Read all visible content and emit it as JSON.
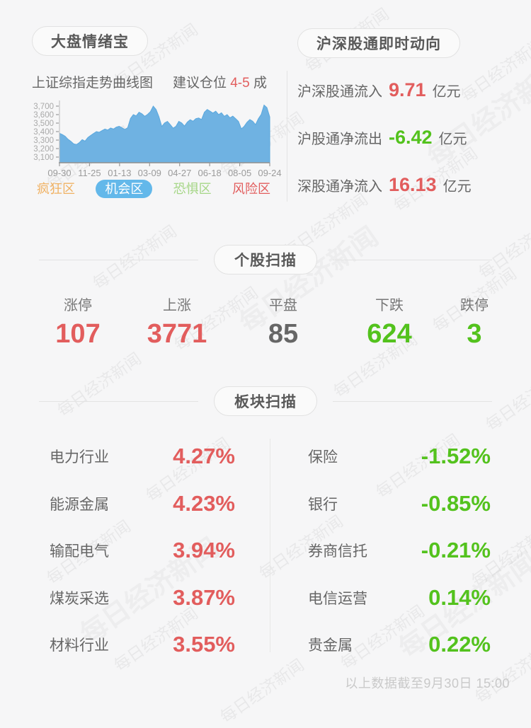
{
  "page": {
    "watermark_text": "每日经济新闻",
    "footer_note": "以上数据截至9月30日 15:00"
  },
  "sentiment": {
    "title": "大盘情绪宝",
    "chart_caption": "上证综指走势曲线图",
    "position_label": "建议仓位",
    "position_value": "4-5",
    "position_unit": "成",
    "legend": [
      {
        "label": "疯狂区",
        "color": "#f0b264",
        "active": false
      },
      {
        "label": "机会区",
        "color": "#63b8ea",
        "active": true
      },
      {
        "label": "恐惧区",
        "color": "#a6d687",
        "active": false
      },
      {
        "label": "风险区",
        "color": "#e25d5d",
        "active": false
      }
    ]
  },
  "chart_data": {
    "type": "area",
    "title": "上证综指走势曲线图",
    "x_ticks": [
      "09-30",
      "11-25",
      "01-13",
      "03-09",
      "04-27",
      "06-18",
      "08-05",
      "09-24"
    ],
    "y_ticks": [
      "3,700",
      "3,600",
      "3,500",
      "3,400",
      "3,300",
      "3,200",
      "3,100"
    ],
    "ylim": [
      3050,
      3750
    ],
    "grid": false,
    "area_color": "#6fb2e2",
    "line_color": "#5aa8de",
    "values": [
      3380,
      3365,
      3345,
      3310,
      3285,
      3255,
      3248,
      3270,
      3305,
      3288,
      3330,
      3355,
      3378,
      3400,
      3392,
      3412,
      3430,
      3418,
      3442,
      3430,
      3452,
      3462,
      3445,
      3425,
      3445,
      3555,
      3600,
      3585,
      3628,
      3610,
      3580,
      3602,
      3635,
      3700,
      3660,
      3575,
      3460,
      3502,
      3520,
      3482,
      3440,
      3462,
      3520,
      3502,
      3465,
      3512,
      3540,
      3522,
      3552,
      3560,
      3542,
      3628,
      3660,
      3640,
      3618,
      3640,
      3600,
      3622,
      3580,
      3600,
      3562,
      3582,
      3552,
      3520,
      3432,
      3462,
      3510,
      3542,
      3522,
      3482,
      3552,
      3602,
      3712,
      3682,
      3572
    ]
  },
  "hsgt": {
    "title": "沪深股通即时动向",
    "rows": [
      {
        "label": "沪深股通流入",
        "value": "9.71",
        "unit": "亿元",
        "color": "#e25d5d"
      },
      {
        "label": "沪股通净流出",
        "value": "-6.42",
        "unit": "亿元",
        "color": "#53c21d"
      },
      {
        "label": "深股通净流入",
        "value": "16.13",
        "unit": "亿元",
        "color": "#e25d5d"
      }
    ]
  },
  "stock_scan": {
    "title": "个股扫描",
    "stats": [
      {
        "label": "涨停",
        "value": "107",
        "color": "#e25d5d"
      },
      {
        "label": "上涨",
        "value": "3771",
        "color": "#e25d5d"
      },
      {
        "label": "平盘",
        "value": "85",
        "color": "#666666"
      },
      {
        "label": "下跌",
        "value": "624",
        "color": "#53c21d"
      },
      {
        "label": "跌停",
        "value": "3",
        "color": "#53c21d"
      }
    ]
  },
  "sector_scan": {
    "title": "板块扫描",
    "left_color": "#e25d5d",
    "right_color": "#53c21d",
    "left": [
      {
        "label": "电力行业",
        "value": "4.27%"
      },
      {
        "label": "能源金属",
        "value": "4.23%"
      },
      {
        "label": "输配电气",
        "value": "3.94%"
      },
      {
        "label": "煤炭采选",
        "value": "3.87%"
      },
      {
        "label": "材料行业",
        "value": "3.55%"
      }
    ],
    "right": [
      {
        "label": "保险",
        "value": "-1.52%"
      },
      {
        "label": "银行",
        "value": "-0.85%"
      },
      {
        "label": "券商信托",
        "value": "-0.21%"
      },
      {
        "label": "电信运营",
        "value": "0.14%"
      },
      {
        "label": "贵金属",
        "value": "0.22%"
      }
    ]
  }
}
